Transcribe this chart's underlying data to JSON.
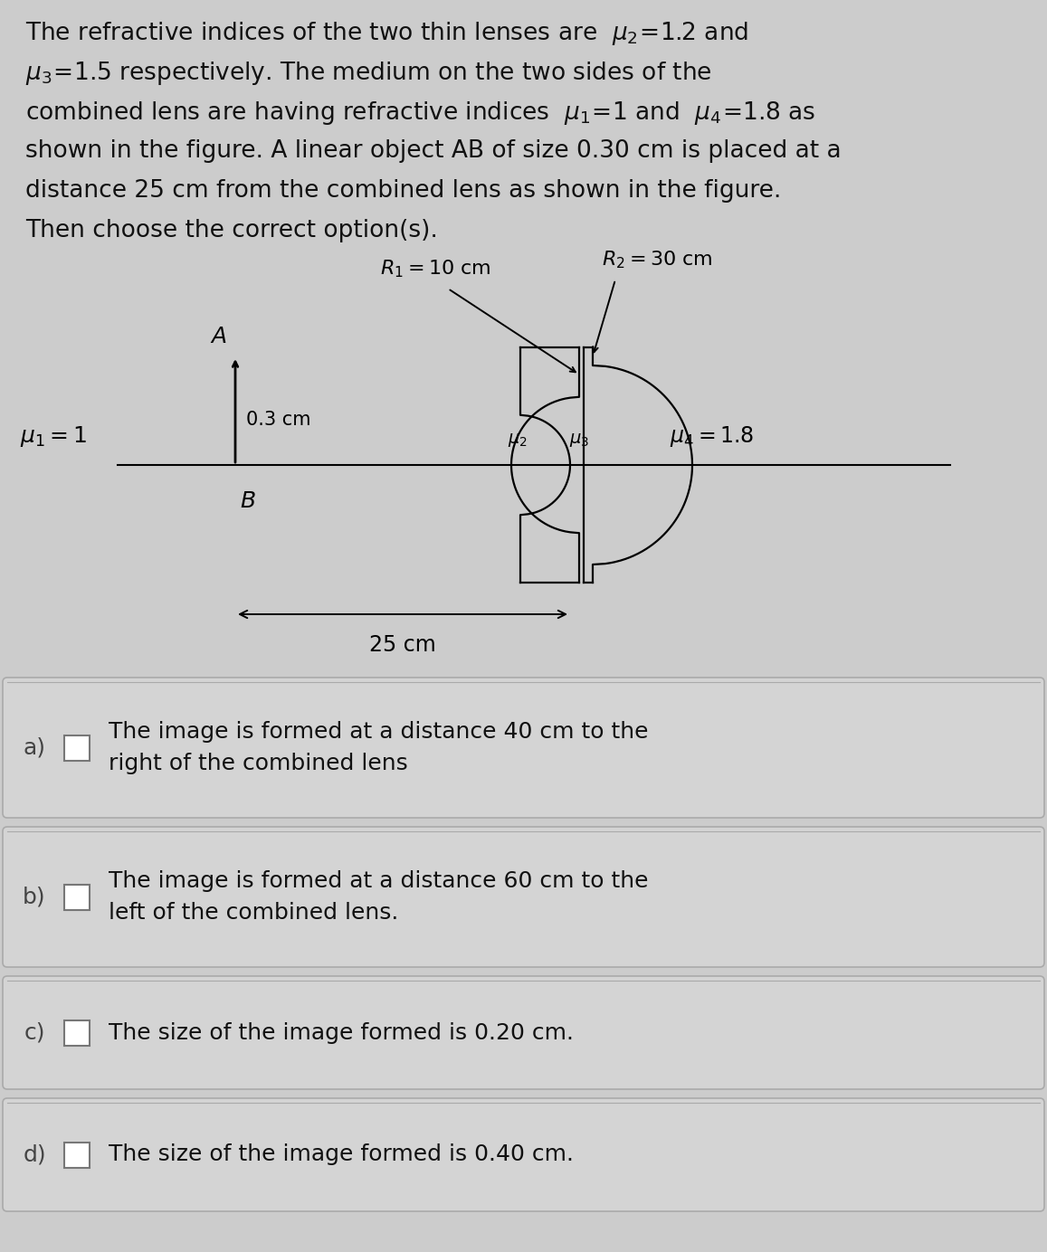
{
  "bg_color": "#cccccc",
  "question_lines": [
    "The refractive indices of the two thin lenses are  $\\mu_2\\!=\\!1.2$ and",
    "$\\mu_3\\!=\\!1.5$ respectively. The medium on the two sides of the",
    "combined lens are having refractive indices  $\\mu_1\\!=\\!1$ and  $\\mu_4\\!=\\!1.8$ as",
    "shown in the figure. A linear object AB of size 0.30 cm is placed at a",
    "distance 25 cm from the combined lens as shown in the figure.",
    "Then choose the correct option(s)."
  ],
  "text_color": "#111111",
  "option_bg": "#d6d6d6",
  "option_border": "#999999",
  "options": [
    {
      "label": "a)",
      "text": "The image is formed at a distance 40 cm to the\nright of the combined lens"
    },
    {
      "label": "b)",
      "text": "The image is formed at a distance 60 cm to the\nleft of the combined lens."
    },
    {
      "label": "c)",
      "text": "The size of the image formed is 0.20 cm."
    },
    {
      "label": "d)",
      "text": "The size of the image formed is 0.40 cm."
    }
  ]
}
